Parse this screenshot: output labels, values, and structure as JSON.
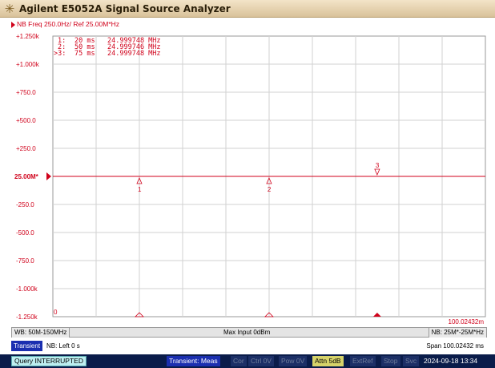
{
  "window": {
    "title": "Agilent E5052A Signal Source Analyzer",
    "logo_icon": "sunburst-logo-icon"
  },
  "trace": {
    "header": "NB Freq 250.0Hz/ Ref 25.00M*Hz",
    "color": "#d0021b"
  },
  "marker_list": [
    {
      "id": "1:",
      "time": "20  ms",
      "freq": "24.999748  MHz"
    },
    {
      "id": "2:",
      "time": "50  ms",
      "freq": "24.999746  MHz"
    },
    {
      "id": ">3:",
      "time": "75  ms",
      "freq": "24.999748  MHz"
    }
  ],
  "y_axis": {
    "labels": [
      "+1.250k",
      "+1.000k",
      "+750.0",
      "+500.0",
      "+250.0",
      "25.00M*",
      "-250.0",
      "-500.0",
      "-750.0",
      "-1.000k",
      "-1.250k"
    ],
    "ref_label": "25.00M*"
  },
  "chart_data": {
    "type": "line",
    "x": [
      0,
      100.02432
    ],
    "y": [
      0,
      0
    ],
    "xlim": [
      0,
      100.02432
    ],
    "ylim": [
      -1250,
      1250
    ],
    "x_start_label": "0",
    "x_end_label": "100.02432m",
    "grid": true,
    "markers": [
      {
        "label": "1",
        "x": 20,
        "y": 0
      },
      {
        "label": "2",
        "x": 50,
        "y": 0
      },
      {
        "label": "3",
        "x": 75,
        "y": 0
      }
    ]
  },
  "info_bar": {
    "wb": "WB: 50M-150MHz",
    "max_input": "Max Input 0dBm",
    "nb": "NB: 25M*-25M*Hz"
  },
  "meas_bar": {
    "tab": "Transient",
    "nb_left": "NB: Left 0 s",
    "span": "Span 100.02432 ms"
  },
  "status_bar": {
    "query": "Query INTERRUPTED",
    "transient": "Transient: Meas",
    "cor": "Cor",
    "ctrl": "Ctrl  0V",
    "pow": "Pow  0V",
    "attn": "Attn 5dB",
    "extref": "ExtRef",
    "stop": "Stop",
    "svc": "Svc",
    "datetime": "2024-09-18 13:34"
  }
}
